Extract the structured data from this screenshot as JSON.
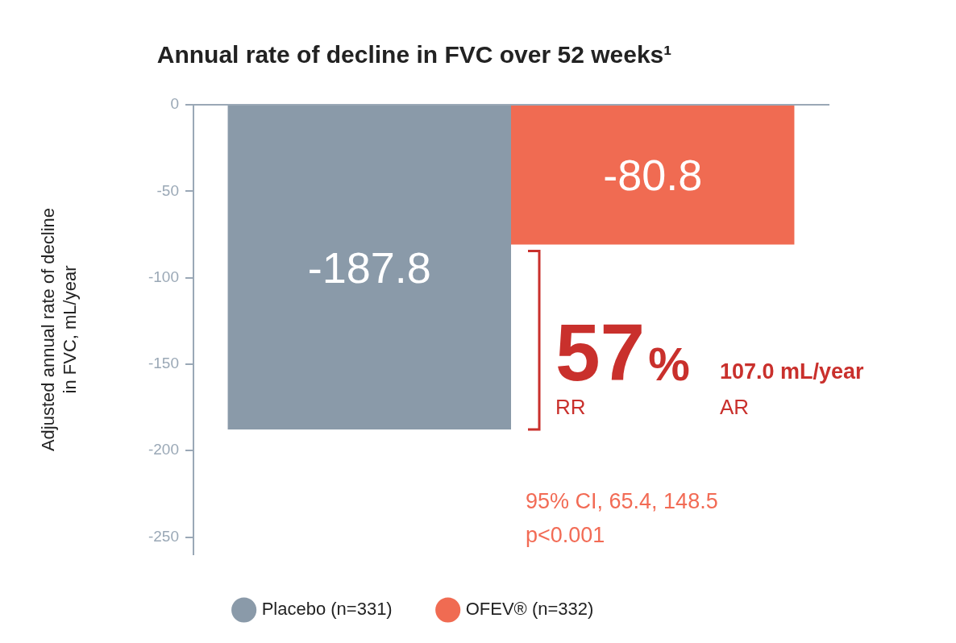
{
  "chart_data": {
    "type": "bar",
    "title": "Annual rate of decline in FVC over 52 weeks¹",
    "y_label": [
      "Adjusted annual rate of decline",
      "in FVC, mL/year"
    ],
    "categories": [
      null
    ],
    "series": [
      {
        "name": "Placebo (n=331)",
        "color": "#8a9aa9",
        "values": [
          -187.8
        ]
      },
      {
        "name": "OFEV® (n=332)",
        "color": "#f06b52",
        "values": [
          -80.8
        ]
      }
    ],
    "ylim": [
      -260,
      0
    ],
    "yticks": [
      0,
      -50,
      -100,
      -150,
      -200,
      -250
    ],
    "grid": false,
    "legend": "bottom",
    "data_labels": true,
    "tick_labels": "y",
    "annotations": [
      {
        "text": "57%",
        "caption": "RR"
      },
      {
        "text": "107.0 mL/year",
        "caption": "AR"
      },
      {
        "text": "95% CI, 65.4, 148.5"
      },
      {
        "text": "p<0.001"
      }
    ]
  }
}
